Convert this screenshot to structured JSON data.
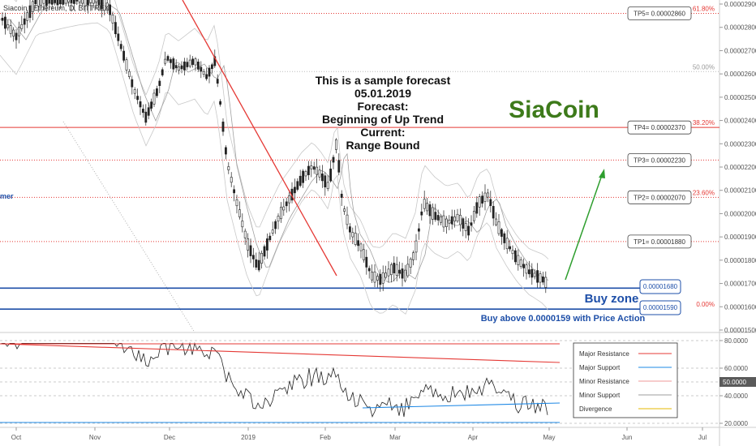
{
  "symbol": "Siacoin / Ethereum, D, BITTREX",
  "left_label": "mer",
  "forecast_lines": [
    "This is a sample forecast",
    "05.01.2019",
    "Forecast:",
    "Beginning of Up Trend",
    "Current:",
    "Range Bound"
  ],
  "brand": "SiaCoin",
  "buy_zone_label": "Buy zone",
  "buy_above_label": "Buy above 0.0000159 with Price Action",
  "buy_zone_top": "0.00001680",
  "buy_zone_bottom": "0.00001590",
  "colors": {
    "level_line": "#e53935",
    "trend_line": "#e53935",
    "buy_zone": "#1e4fa8",
    "forecast_arrow": "#2e9e2e",
    "candle": "#222222",
    "brand": "#3d7a1a",
    "major_support": "#1e88e5",
    "minor_support": "#9e9e9e",
    "divergence": "#e6b800"
  },
  "chart_data": {
    "type": "candlestick",
    "x_ticks": [
      "Oct",
      "Nov",
      "Dec",
      "2019",
      "Feb",
      "Mar",
      "Apr",
      "May",
      "Jun",
      "Jul"
    ],
    "y_ticks": [
      "0.00002900",
      "0.00002800",
      "0.00002700",
      "0.00002600",
      "0.00002500",
      "0.00002400",
      "0.00002300",
      "0.00002200",
      "0.00002100",
      "0.00002000",
      "0.00001900",
      "0.00001800",
      "0.00001700",
      "0.00001600",
      "0.00001500"
    ],
    "ylim": [
      1.48e-05,
      2.93e-05
    ],
    "levels": [
      {
        "label": "TP5= 0.00002860",
        "value": 2.86e-05,
        "style": "dotted",
        "fib": "61.80%",
        "fib_color": "red"
      },
      {
        "label": "",
        "value": 2.61e-05,
        "style": "dotted-gray",
        "fib": "50.00%",
        "fib_color": "gray"
      },
      {
        "label": "TP4= 0.00002370",
        "value": 2.37e-05,
        "style": "solid",
        "fib": "38.20%",
        "fib_color": "red"
      },
      {
        "label": "TP3= 0.00002230",
        "value": 2.23e-05,
        "style": "dotted",
        "fib": "",
        "fib_color": "red"
      },
      {
        "label": "TP2= 0.00002070",
        "value": 2.07e-05,
        "style": "dotted",
        "fib": "23.60%",
        "fib_color": "red"
      },
      {
        "label": "TP1= 0.00001880",
        "value": 1.88e-05,
        "style": "dotted",
        "fib": "",
        "fib_color": "red"
      }
    ],
    "buy_zone": [
      1.59e-05,
      1.68e-05
    ],
    "buy_zone_fib": "0.00%",
    "oscillator": {
      "y_ticks": [
        "80.0000",
        "60.0000",
        "40.0000",
        "20.0000"
      ],
      "ylim": [
        15,
        82
      ],
      "marker": "50.0000",
      "marker_value": 50
    },
    "legend": [
      {
        "label": "Major Resistance",
        "color": "#e53935"
      },
      {
        "label": "Major Support",
        "color": "#1e88e5"
      },
      {
        "label": "Minor Resistance",
        "color": "#ef9a9a"
      },
      {
        "label": "Minor Support",
        "color": "#9e9e9e"
      },
      {
        "label": "Divergence",
        "color": "#e6b800"
      }
    ]
  }
}
